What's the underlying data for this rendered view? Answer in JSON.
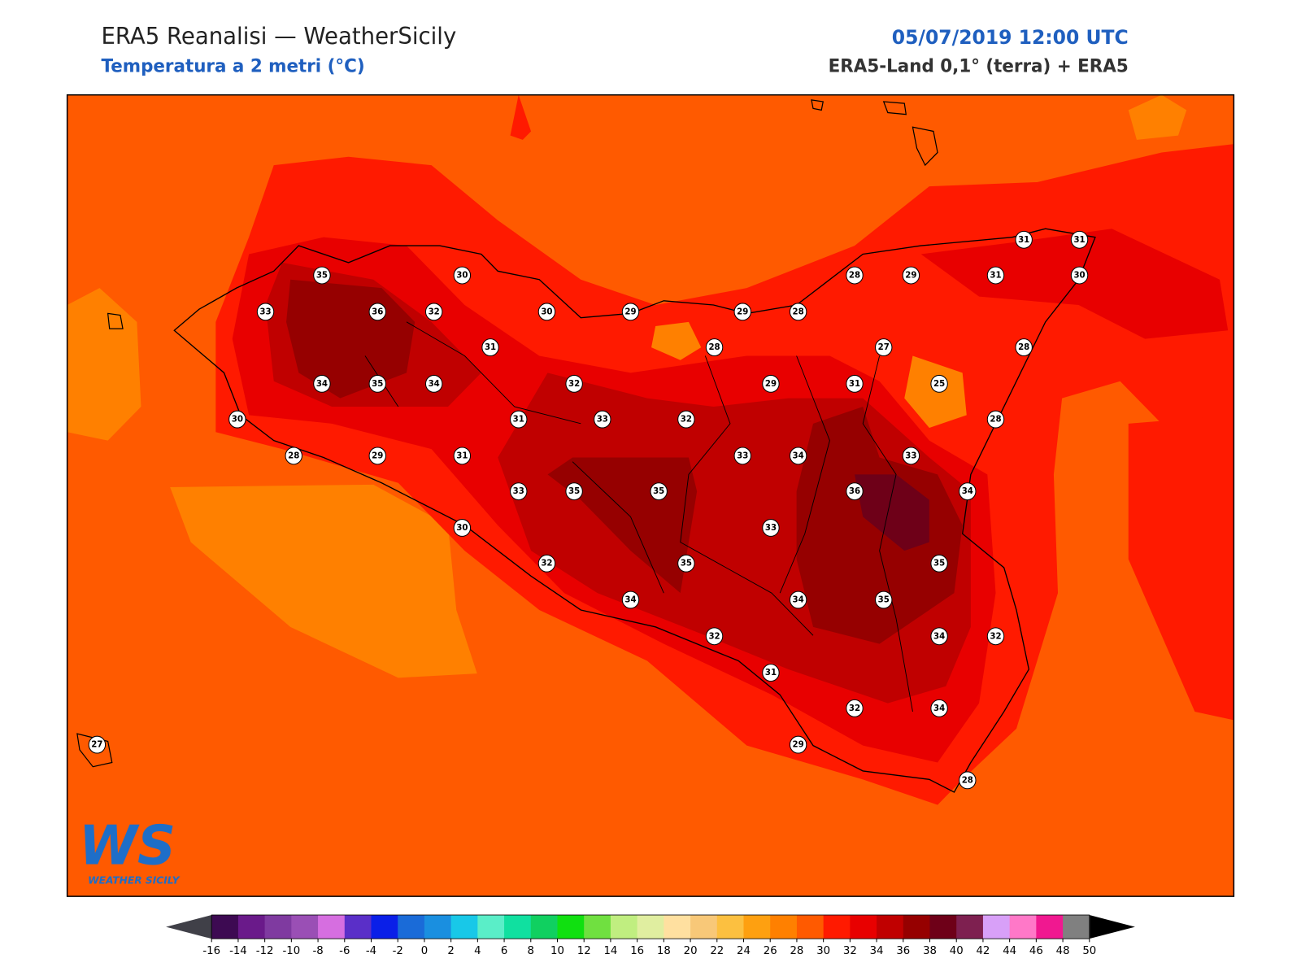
{
  "header": {
    "title": "ERA5 Reanalisi — WeatherSicily",
    "subtitle": "Temperatura a 2 metri (°C)",
    "datetime": "05/07/2019 12:00 UTC",
    "source": "ERA5-Land 0,1° (terra) + ERA5"
  },
  "logo": {
    "mark": "WS",
    "name": "WEATHER SICILY"
  },
  "stations": [
    35,
    30,
    33,
    36,
    32,
    30,
    29,
    29,
    28,
    28,
    29,
    31,
    30,
    31,
    31,
    31,
    28,
    27,
    28,
    34,
    35,
    34,
    32,
    29,
    31,
    25,
    30,
    31,
    33,
    32,
    28,
    28,
    29,
    31,
    33,
    34,
    33,
    33,
    35,
    35,
    36,
    34,
    30,
    33,
    32,
    35,
    35,
    34,
    34,
    35,
    32,
    34,
    32,
    31,
    32,
    34,
    27,
    29,
    28
  ],
  "colorbar": {
    "ticks": [
      -16,
      -14,
      -12,
      -10,
      -8,
      -6,
      -4,
      -2,
      0,
      2,
      4,
      6,
      8,
      10,
      12,
      14,
      16,
      18,
      20,
      22,
      24,
      26,
      28,
      30,
      32,
      34,
      36,
      38,
      40,
      42,
      44,
      46,
      48,
      50
    ],
    "colors": [
      "#3d0a52",
      "#6a1a8a",
      "#7f3aa0",
      "#9a4fb5",
      "#d66ee0",
      "#5a2fc8",
      "#0a1fe8",
      "#1a6bd8",
      "#1a8fe0",
      "#18c8e8",
      "#5aeec8",
      "#10e0a0",
      "#10d060",
      "#10e010",
      "#70e040",
      "#c0ee80",
      "#e0eea0",
      "#ffe0a0",
      "#f8c878",
      "#fcc040",
      "#fea010",
      "#ff8000",
      "#ff5a00",
      "#ff1a00",
      "#e80000",
      "#c00000",
      "#960000",
      "#6e0018",
      "#7e2050",
      "#d8a0f8",
      "#ff78c8",
      "#f01890",
      "#808080",
      "#404040"
    ],
    "under": "#404048",
    "over": "#000000"
  }
}
